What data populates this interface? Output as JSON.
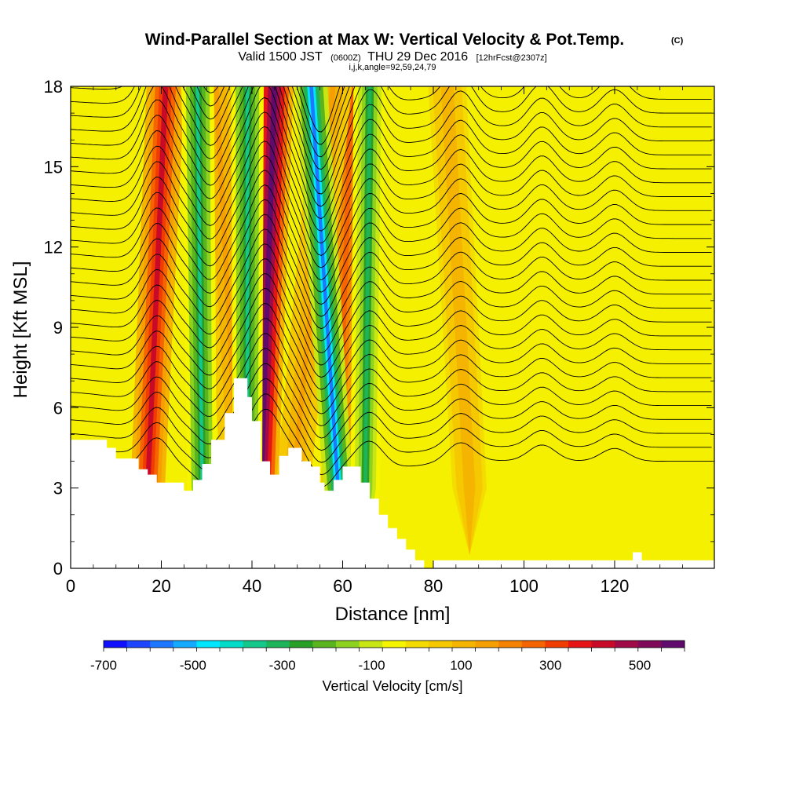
{
  "chart_data": {
    "type": "heatmap",
    "title": "Wind-Parallel Section at Max W: Vertical Velocity & Pot.Temp.",
    "copyright": "(C)",
    "subtitle": {
      "main": "Valid 1500 JST",
      "utc": "(0600Z)",
      "date": "THU 29 Dec 2016",
      "forecast": "[12hrFcst@2307z]"
    },
    "indices_label": "i,j,k,angle=92,59,24,79",
    "xlabel": "Distance [nm]",
    "ylabel": "Height [Kft MSL]",
    "xlim": [
      0,
      142
    ],
    "ylim": [
      0,
      18
    ],
    "x_ticks": [
      0,
      20,
      40,
      60,
      80,
      100,
      120
    ],
    "y_ticks": [
      0,
      3,
      6,
      9,
      12,
      15,
      18
    ],
    "colorbar": {
      "title": "Vertical Velocity [cm/s]",
      "min": -700,
      "max": 600,
      "labels": [
        -700,
        -500,
        -300,
        -100,
        100,
        300,
        500
      ],
      "colors": [
        "#1010ff",
        "#1e46ff",
        "#1e78ff",
        "#14aaff",
        "#00e6ff",
        "#00dcc8",
        "#14c88c",
        "#1eb45a",
        "#28a028",
        "#5ab41e",
        "#8cd21e",
        "#c8e614",
        "#f5f500",
        "#f5dc00",
        "#f5c800",
        "#f5b400",
        "#f5a000",
        "#f58200",
        "#f56400",
        "#f03c00",
        "#e61414",
        "#c80a28",
        "#a00a46",
        "#800a5a",
        "#600a6e"
      ]
    },
    "updraft_bands": [
      {
        "x_top": 21,
        "x_bottom": 17,
        "w": 420
      },
      {
        "x_top": 32,
        "x_bottom": 37,
        "w": 150
      },
      {
        "x_top": 45,
        "x_bottom": 42,
        "w": 600
      },
      {
        "x_top": 62,
        "x_bottom": 59,
        "w": 280
      },
      {
        "x_top": 58,
        "x_bottom": 49,
        "w": 150
      },
      {
        "x_top": 83,
        "x_bottom": 88,
        "w": 110
      }
    ],
    "downdraft_bands": [
      {
        "x_top": 28,
        "x_bottom": 29,
        "w": -350
      },
      {
        "x_top": 39,
        "x_bottom": 39,
        "w": -350
      },
      {
        "x_top": 53,
        "x_bottom": 59,
        "w": -560
      },
      {
        "x_top": 66,
        "x_bottom": 65,
        "w": -300
      }
    ],
    "terrain_kft": [
      [
        0,
        4.8
      ],
      [
        8,
        4.8
      ],
      [
        8,
        4.5
      ],
      [
        10,
        4.5
      ],
      [
        10,
        4.1
      ],
      [
        15,
        4.1
      ],
      [
        15,
        3.7
      ],
      [
        17,
        3.7
      ],
      [
        17,
        3.5
      ],
      [
        19,
        3.5
      ],
      [
        19,
        3.2
      ],
      [
        25,
        3.2
      ],
      [
        25,
        2.9
      ],
      [
        27,
        2.9
      ],
      [
        27,
        3.3
      ],
      [
        29,
        3.3
      ],
      [
        29,
        3.9
      ],
      [
        31,
        3.9
      ],
      [
        31,
        4.8
      ],
      [
        34,
        4.8
      ],
      [
        34,
        5.8
      ],
      [
        36,
        5.8
      ],
      [
        36,
        7.1
      ],
      [
        39,
        7.1
      ],
      [
        39,
        6.4
      ],
      [
        40,
        6.4
      ],
      [
        40,
        5.5
      ],
      [
        42,
        5.5
      ],
      [
        42,
        4.0
      ],
      [
        44,
        4.0
      ],
      [
        44,
        3.5
      ],
      [
        46,
        3.5
      ],
      [
        46,
        4.2
      ],
      [
        48,
        4.2
      ],
      [
        48,
        4.5
      ],
      [
        51,
        4.5
      ],
      [
        51,
        4.0
      ],
      [
        53,
        4.0
      ],
      [
        53,
        3.8
      ],
      [
        55,
        3.8
      ],
      [
        55,
        3.2
      ],
      [
        56,
        3.2
      ],
      [
        56,
        2.9
      ],
      [
        58,
        2.9
      ],
      [
        58,
        3.3
      ],
      [
        60,
        3.3
      ],
      [
        60,
        3.8
      ],
      [
        64,
        3.8
      ],
      [
        64,
        3.2
      ],
      [
        66,
        3.2
      ],
      [
        66,
        2.6
      ],
      [
        68,
        2.6
      ],
      [
        68,
        2.0
      ],
      [
        70,
        2.0
      ],
      [
        70,
        1.5
      ],
      [
        72,
        1.5
      ],
      [
        72,
        1.1
      ],
      [
        74,
        1.1
      ],
      [
        74,
        0.7
      ],
      [
        76,
        0.7
      ],
      [
        76,
        0.3
      ],
      [
        78,
        0.3
      ],
      [
        78,
        0.0
      ],
      [
        80,
        0.0
      ],
      [
        80,
        0.3
      ],
      [
        124,
        0.3
      ],
      [
        124,
        0.6
      ],
      [
        126,
        0.6
      ],
      [
        126,
        0.3
      ],
      [
        142,
        0.3
      ]
    ]
  }
}
